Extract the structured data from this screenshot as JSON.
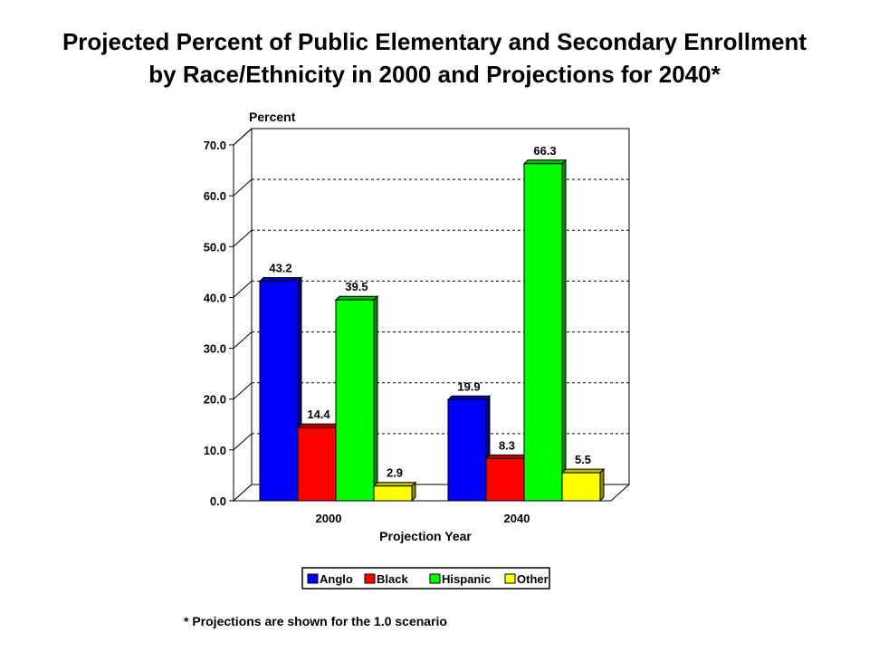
{
  "title_line1": "Projected Percent of Public Elementary and Secondary Enrollment",
  "title_line2": "by Race/Ethnicity in 2000 and Projections for 2040*",
  "footnote": "* Projections are shown for the 1.0 scenario",
  "colors": {
    "Anglo": "#0000ff",
    "Black": "#ff0000",
    "Hispanic": "#00ff00",
    "Other": "#ffff00"
  },
  "chart_data": {
    "type": "bar",
    "title": "Projected Percent of Public Elementary and Secondary Enrollment by Race/Ethnicity in 2000 and Projections for 2040*",
    "xlabel": "Projection Year",
    "ylabel": "Percent",
    "categories": [
      "2000",
      "2040"
    ],
    "series": [
      {
        "name": "Anglo",
        "values": [
          43.2,
          19.9
        ]
      },
      {
        "name": "Black",
        "values": [
          14.4,
          8.3
        ]
      },
      {
        "name": "Hispanic",
        "values": [
          39.5,
          66.3
        ]
      },
      {
        "name": "Other",
        "values": [
          2.9,
          5.5
        ]
      }
    ],
    "ylim": [
      0,
      70
    ],
    "yticks": [
      "0.0",
      "10.0",
      "20.0",
      "30.0",
      "40.0",
      "50.0",
      "60.0",
      "70.0"
    ],
    "grid": true,
    "legend": "bottom"
  }
}
